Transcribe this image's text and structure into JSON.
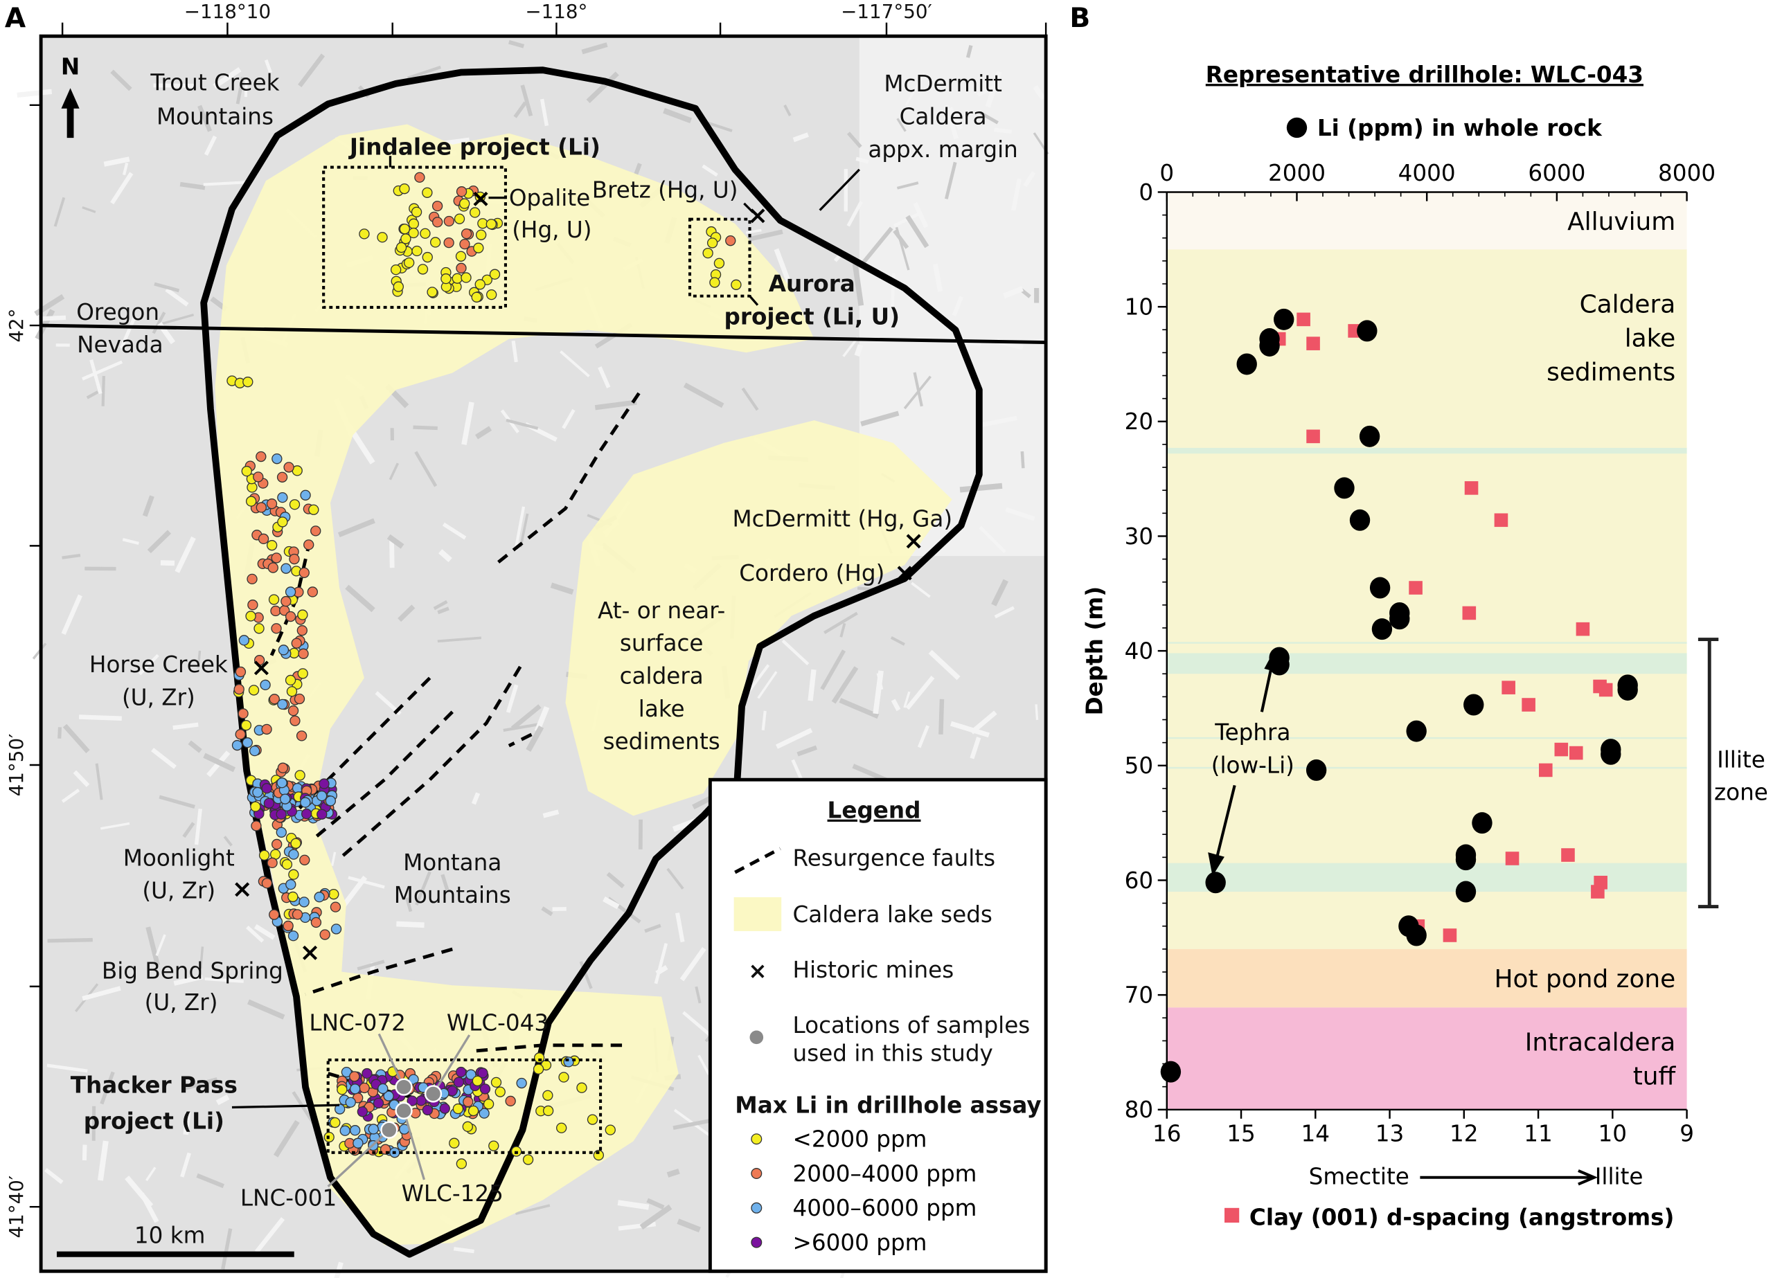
{
  "panel_a": {
    "letter": "A",
    "lon_ticks": [
      "−118°10",
      "−118°",
      "−117°50′"
    ],
    "lat_ticks": [
      "42°",
      "41°50′",
      "41°40′"
    ],
    "north": "N",
    "scale_bar": "10 km",
    "labels": {
      "trout_creek": [
        "Trout Creek",
        "Mountains"
      ],
      "mcdermitt_margin": [
        "McDermitt",
        "Caldera",
        "appx. margin"
      ],
      "jindalee": "Jindalee project (Li)",
      "opalite": [
        "Opalite",
        "(Hg, U)"
      ],
      "bretz": "Bretz (Hg, U)",
      "aurora": [
        "Aurora",
        "project (Li, U)"
      ],
      "oregon": "Oregon",
      "nevada": "Nevada",
      "mcdermitt_mine": "McDermitt (Hg, Ga)",
      "cordero": "Cordero (Hg)",
      "lake_seds": [
        "At- or near-",
        "surface",
        "caldera",
        "lake",
        "sediments"
      ],
      "horse_creek": [
        "Horse Creek",
        "(U, Zr)"
      ],
      "moonlight": [
        "Moonlight",
        "(U, Zr)"
      ],
      "montana": [
        "Montana",
        "Mountains"
      ],
      "big_bend": [
        "Big Bend Spring",
        "(U, Zr)"
      ],
      "thacker": [
        "Thacker Pass",
        "project (Li)"
      ]
    },
    "samples": [
      "LNC-072",
      "WLC-043",
      "WLC-125",
      "LNC-001"
    ],
    "legend": {
      "title": "Legend",
      "faults": "Resurgence faults",
      "lake_seds": "Caldera lake seds",
      "mines": "Historic mines",
      "mine_symbol": "×",
      "samples": [
        "Locations of samples",
        "used in this study"
      ],
      "li_title": "Max Li in drillhole assay",
      "li_classes": [
        {
          "label": "<2000 ppm",
          "color": "#f4ee22"
        },
        {
          "label": "2000–4000 ppm",
          "color": "#ee7a55"
        },
        {
          "label": "4000–6000 ppm",
          "color": "#6fb1ec"
        },
        {
          "label": ">6000 ppm",
          "color": "#7a129e"
        }
      ]
    },
    "colors": {
      "lake_seds": "#fbf8c4",
      "sample": "#8a8a8a",
      "terrain": "#e1e1e1"
    }
  },
  "panel_b": {
    "letter": "B"
  },
  "chart_data": {
    "type": "scatter",
    "title": "Representative drillhole: WLC-043",
    "ylabel": "Depth (m)",
    "ylim": [
      0,
      80
    ],
    "y_inverted": true,
    "yticks": [
      "0",
      "10",
      "20",
      "30",
      "40",
      "50",
      "60",
      "70",
      "80"
    ],
    "top_axis": {
      "xlim": [
        0,
        8000
      ],
      "ticks": [
        "0",
        "2000",
        "4000",
        "6000",
        "8000"
      ]
    },
    "bottom_axis": {
      "xlim": [
        16,
        9
      ],
      "ticks": [
        "16",
        "15",
        "14",
        "13",
        "12",
        "11",
        "10",
        "9"
      ],
      "label_left": "Smectite",
      "label_right": "Illite"
    },
    "grid": false,
    "series": [
      {
        "name": "Li (ppm) in whole rock",
        "marker": "circle",
        "color": "#000000",
        "points": [
          [
            1800,
            11.1
          ],
          [
            3080,
            12.1
          ],
          [
            1580,
            12.8
          ],
          [
            1580,
            13.4
          ],
          [
            1230,
            15.0
          ],
          [
            3120,
            21.3
          ],
          [
            2730,
            25.8
          ],
          [
            2970,
            28.6
          ],
          [
            3280,
            34.5
          ],
          [
            3580,
            36.7
          ],
          [
            3580,
            37.2
          ],
          [
            3310,
            38.1
          ],
          [
            1730,
            40.6
          ],
          [
            1730,
            41.2
          ],
          [
            7090,
            43.0
          ],
          [
            7090,
            43.4
          ],
          [
            4720,
            44.7
          ],
          [
            3840,
            47.0
          ],
          [
            6830,
            48.6
          ],
          [
            6830,
            49.0
          ],
          [
            2300,
            50.4
          ],
          [
            4850,
            55.0
          ],
          [
            4600,
            57.8
          ],
          [
            4600,
            58.2
          ],
          [
            750,
            60.2
          ],
          [
            4600,
            61.0
          ],
          [
            3720,
            64.0
          ],
          [
            3840,
            64.8
          ],
          [
            60,
            76.7
          ]
        ]
      },
      {
        "name": "Clay (001) d-spacing (angstroms)",
        "marker": "square",
        "color": "#ee5466",
        "points": [
          [
            14.16,
            11.1
          ],
          [
            13.47,
            12.1
          ],
          [
            14.49,
            12.8
          ],
          [
            14.03,
            13.2
          ],
          [
            14.03,
            21.3
          ],
          [
            11.9,
            25.8
          ],
          [
            11.5,
            28.6
          ],
          [
            12.65,
            34.5
          ],
          [
            11.93,
            36.7
          ],
          [
            10.4,
            38.1
          ],
          [
            11.4,
            43.2
          ],
          [
            10.17,
            43.1
          ],
          [
            10.09,
            43.4
          ],
          [
            11.13,
            44.7
          ],
          [
            10.69,
            48.6
          ],
          [
            10.49,
            48.9
          ],
          [
            10.9,
            50.4
          ],
          [
            10.6,
            57.8
          ],
          [
            11.35,
            58.1
          ],
          [
            10.16,
            60.2
          ],
          [
            10.2,
            61.0
          ],
          [
            12.62,
            64.0
          ],
          [
            12.19,
            64.8
          ]
        ]
      }
    ],
    "zones": [
      {
        "label": [
          "Alluvium"
        ],
        "top": 0,
        "bottom": 5,
        "color": "#fcf8ef"
      },
      {
        "label": [
          "Caldera",
          "lake",
          "sediments"
        ],
        "top": 5,
        "bottom": 66,
        "color": "#f8f5d1"
      },
      {
        "label": [
          "Hot pond zone"
        ],
        "top": 66,
        "bottom": 71.1,
        "color": "#fce0bd"
      },
      {
        "label": [
          "Intracaldera",
          "tuff"
        ],
        "top": 71.1,
        "bottom": 80,
        "color": "#f6bad6"
      }
    ],
    "tephra_bands": [
      [
        22.3,
        22.8
      ],
      [
        40.2,
        42.0
      ],
      [
        58.5,
        61.0
      ]
    ],
    "thin_bands": [
      39.3,
      47.6,
      50.2
    ],
    "tephra_color": "#dcefdc",
    "annotations": {
      "tephra": [
        "Tephra",
        "(low-Li)"
      ],
      "illite_zone": {
        "label": [
          "Illite",
          "zone"
        ],
        "range": [
          39,
          62.3
        ]
      }
    }
  }
}
